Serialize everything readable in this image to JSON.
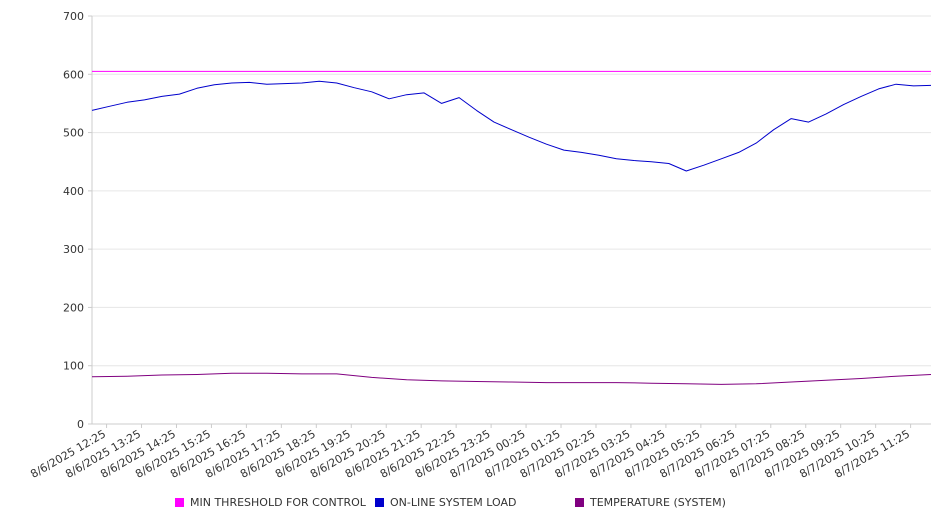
{
  "chart_data": {
    "type": "line",
    "title": "",
    "xlabel": "",
    "ylabel": "",
    "ylim": [
      0,
      700
    ],
    "yticks": [
      0,
      100,
      200,
      300,
      400,
      500,
      600,
      700
    ],
    "grid": "horizontal",
    "legend_position": "bottom",
    "x_tick_labels": [
      "8/6/2025 12:25",
      "8/6/2025 13:25",
      "8/6/2025 14:25",
      "8/6/2025 15:25",
      "8/6/2025 16:25",
      "8/6/2025 17:25",
      "8/6/2025 18:25",
      "8/6/2025 19:25",
      "8/6/2025 20:25",
      "8/6/2025 21:25",
      "8/6/2025 22:25",
      "8/6/2025 23:25",
      "8/7/2025 00:25",
      "8/7/2025 01:25",
      "8/7/2025 02:25",
      "8/7/2025 03:25",
      "8/7/2025 04:25",
      "8/7/2025 05:25",
      "8/7/2025 06:25",
      "8/7/2025 07:25",
      "8/7/2025 08:25",
      "8/7/2025 09:25",
      "8/7/2025 10:25",
      "8/7/2025 11:25"
    ],
    "x_range": [
      "8/6/2025 12:00",
      "8/7/2025 12:00"
    ],
    "series": [
      {
        "name": "MIN THRESHOLD FOR CONTROL",
        "color": "#ff00ff",
        "x": [
          "8/6/2025 12:00",
          "8/7/2025 12:00"
        ],
        "y": [
          605,
          605
        ]
      },
      {
        "name": "ON-LINE SYSTEM LOAD",
        "color": "#0000cc",
        "x": [
          "8/6/2025 12:00",
          "8/6/2025 12:30",
          "8/6/2025 13:00",
          "8/6/2025 13:30",
          "8/6/2025 14:00",
          "8/6/2025 14:30",
          "8/6/2025 15:00",
          "8/6/2025 15:30",
          "8/6/2025 16:00",
          "8/6/2025 16:30",
          "8/6/2025 17:00",
          "8/6/2025 17:30",
          "8/6/2025 18:00",
          "8/6/2025 18:30",
          "8/6/2025 19:00",
          "8/6/2025 19:30",
          "8/6/2025 20:00",
          "8/6/2025 20:30",
          "8/6/2025 21:00",
          "8/6/2025 21:30",
          "8/6/2025 22:00",
          "8/6/2025 22:30",
          "8/6/2025 23:00",
          "8/6/2025 23:30",
          "8/7/2025 00:00",
          "8/7/2025 00:30",
          "8/7/2025 01:00",
          "8/7/2025 01:30",
          "8/7/2025 02:00",
          "8/7/2025 02:30",
          "8/7/2025 03:00",
          "8/7/2025 03:30",
          "8/7/2025 04:00",
          "8/7/2025 04:30",
          "8/7/2025 05:00",
          "8/7/2025 05:30",
          "8/7/2025 06:00",
          "8/7/2025 06:30",
          "8/7/2025 07:00",
          "8/7/2025 07:30",
          "8/7/2025 08:00",
          "8/7/2025 08:30",
          "8/7/2025 09:00",
          "8/7/2025 09:30",
          "8/7/2025 10:00",
          "8/7/2025 10:30",
          "8/7/2025 11:00",
          "8/7/2025 11:30",
          "8/7/2025 12:00"
        ],
        "y": [
          538,
          545,
          552,
          556,
          562,
          566,
          576,
          582,
          585,
          586,
          583,
          584,
          585,
          588,
          585,
          577,
          570,
          558,
          565,
          568,
          550,
          560,
          538,
          518,
          505,
          492,
          480,
          470,
          466,
          461,
          455,
          452,
          450,
          447,
          434,
          444,
          455,
          466,
          482,
          505,
          524,
          518,
          532,
          548,
          562,
          575,
          583,
          580,
          581
        ]
      },
      {
        "name": "TEMPERATURE (SYSTEM)",
        "color": "#800080",
        "x": [
          "8/6/2025 12:00",
          "8/6/2025 13:00",
          "8/6/2025 14:00",
          "8/6/2025 15:00",
          "8/6/2025 16:00",
          "8/6/2025 17:00",
          "8/6/2025 18:00",
          "8/6/2025 19:00",
          "8/6/2025 20:00",
          "8/6/2025 21:00",
          "8/6/2025 22:00",
          "8/6/2025 23:00",
          "8/7/2025 00:00",
          "8/7/2025 01:00",
          "8/7/2025 02:00",
          "8/7/2025 03:00",
          "8/7/2025 04:00",
          "8/7/2025 05:00",
          "8/7/2025 06:00",
          "8/7/2025 07:00",
          "8/7/2025 08:00",
          "8/7/2025 09:00",
          "8/7/2025 10:00",
          "8/7/2025 11:00",
          "8/7/2025 12:00"
        ],
        "y": [
          81,
          82,
          84,
          85,
          87,
          87,
          86,
          86,
          80,
          76,
          74,
          73,
          72,
          71,
          71,
          71,
          70,
          69,
          68,
          69,
          72,
          75,
          78,
          82,
          85
        ]
      }
    ]
  }
}
